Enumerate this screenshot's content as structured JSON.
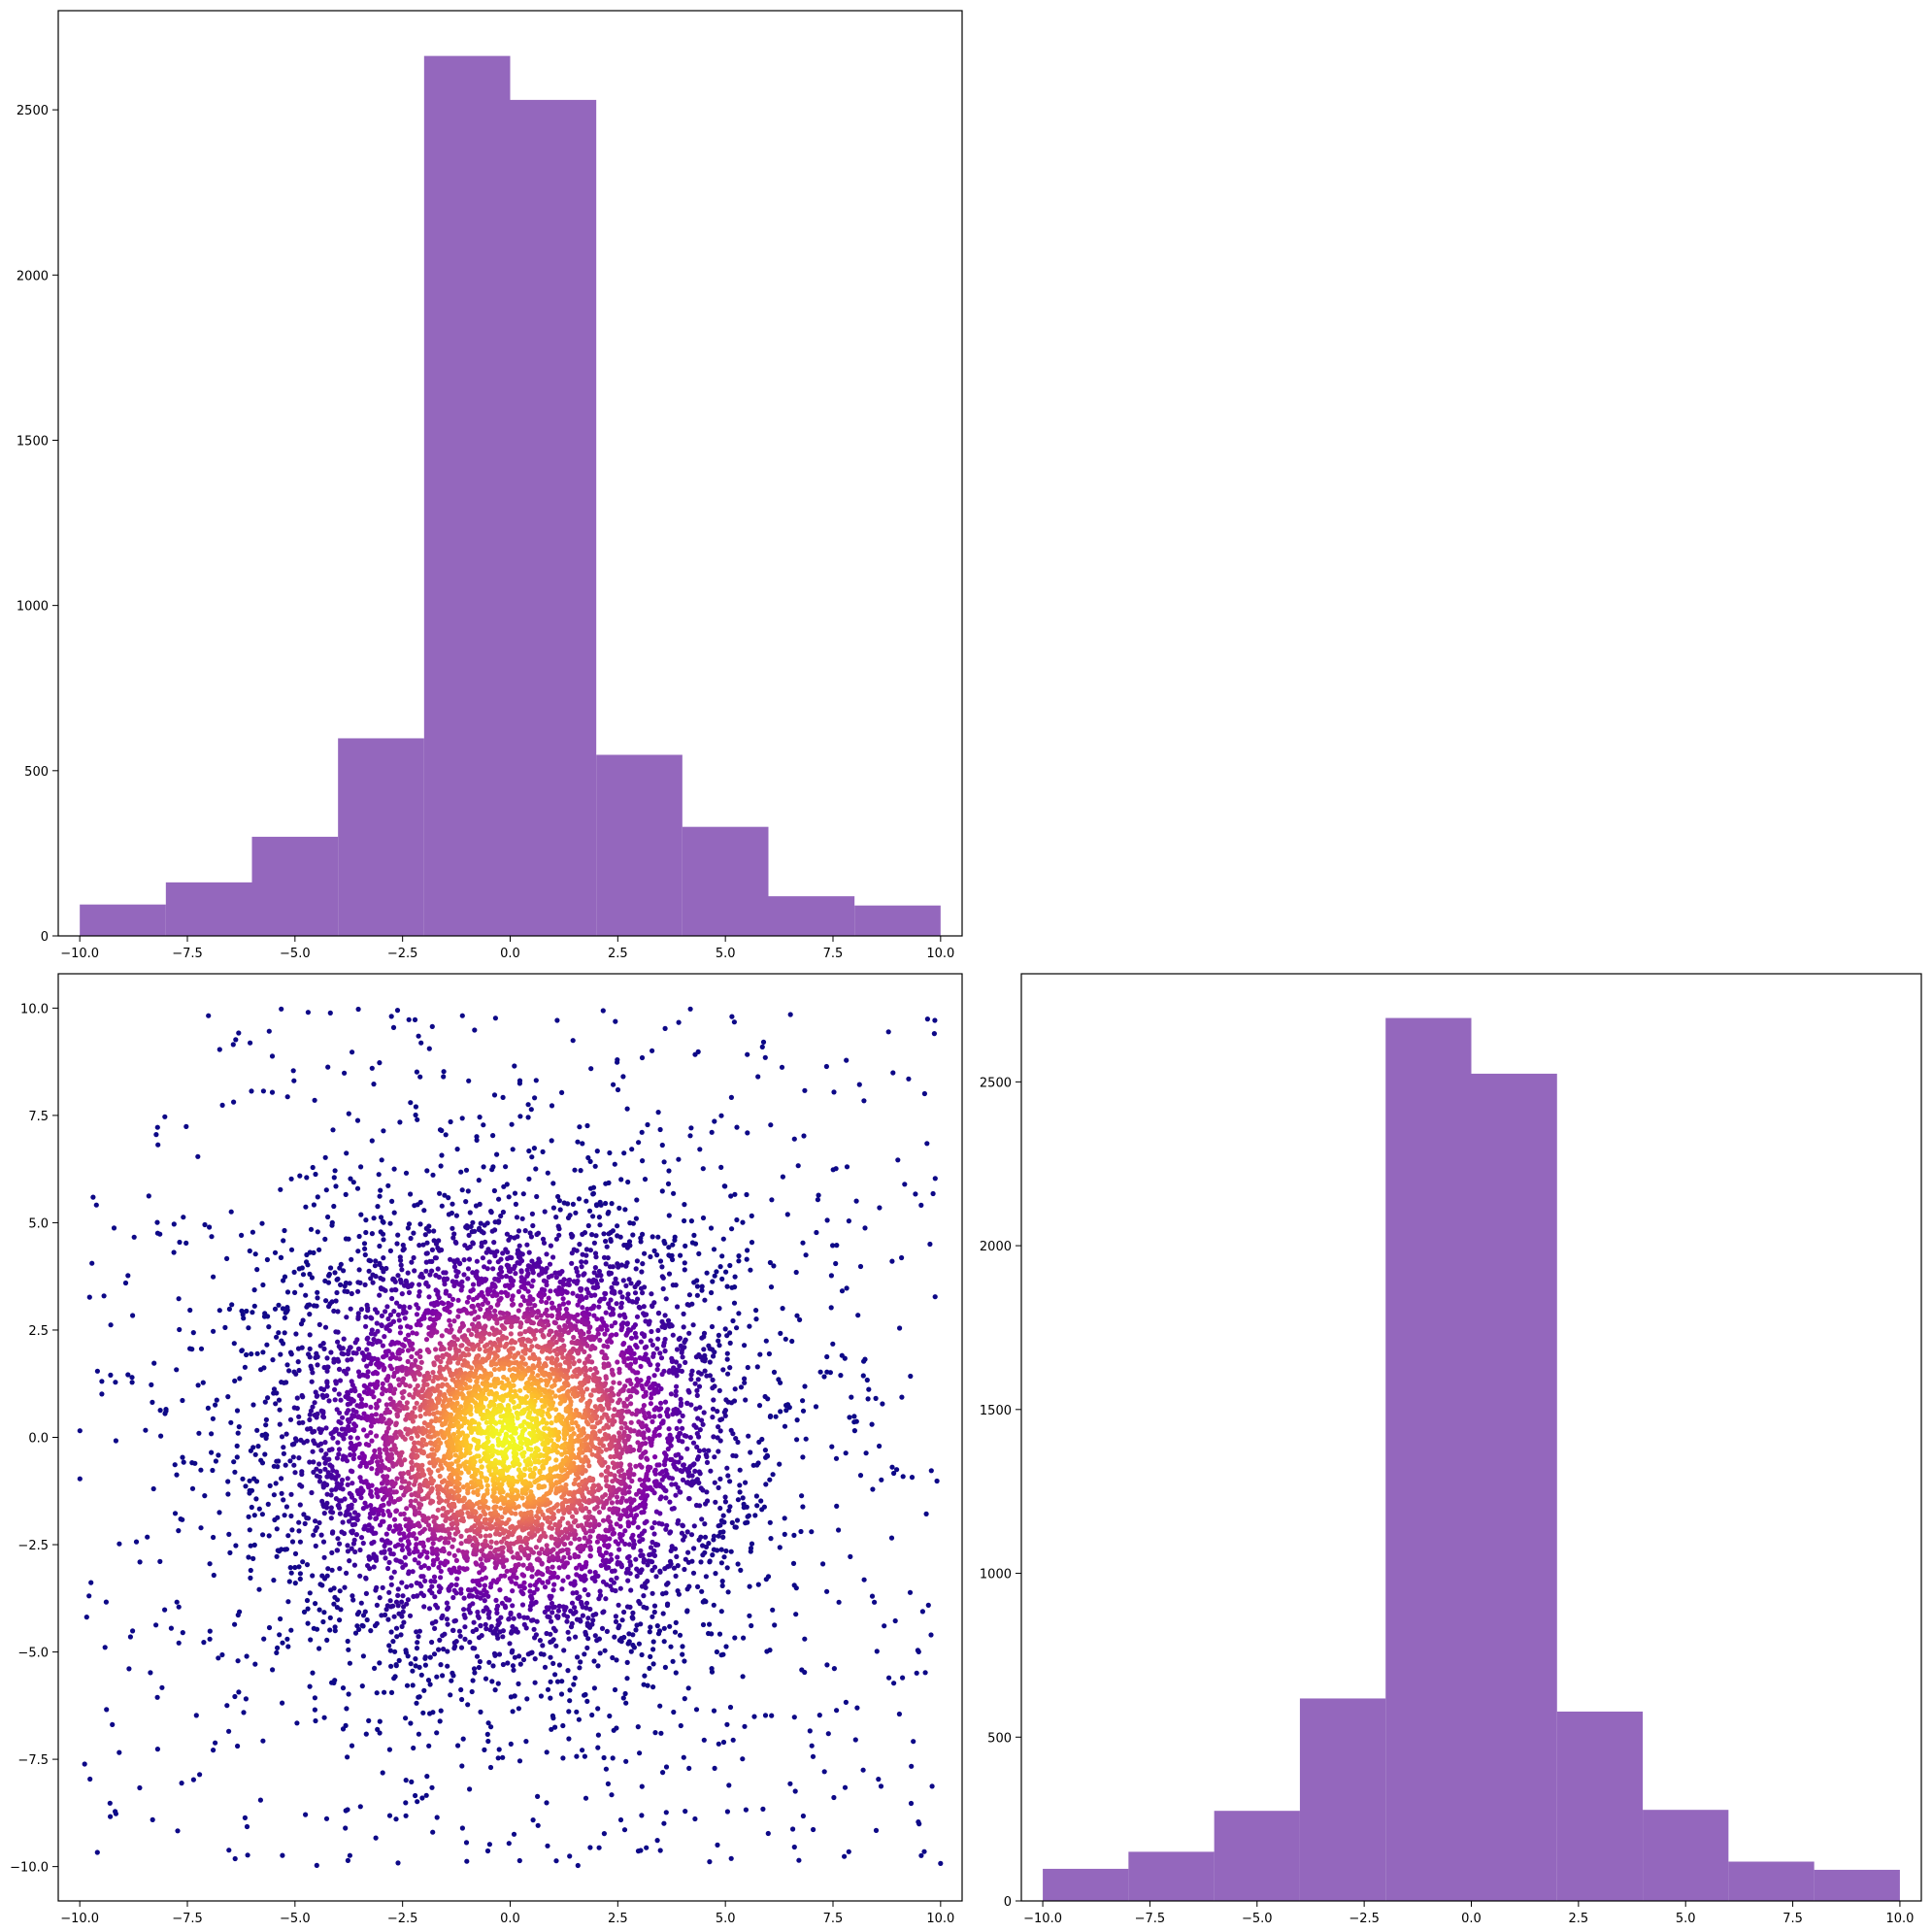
{
  "chart_data": [
    {
      "panel": "top-left",
      "type": "histogram",
      "color": "#9467bd",
      "bin_edges": [
        -10,
        -8,
        -6,
        -4,
        -2,
        0,
        2,
        4,
        6,
        8,
        10
      ],
      "counts": [
        95,
        162,
        300,
        598,
        2663,
        2530,
        548,
        330,
        120,
        92
      ],
      "xlim": [
        -10.5,
        10.5
      ],
      "ylim": [
        0,
        2800
      ],
      "xticks": [
        -10.0,
        -7.5,
        -5.0,
        -2.5,
        0.0,
        2.5,
        5.0,
        7.5,
        10.0
      ],
      "xtick_labels": [
        "−10.0",
        "−7.5",
        "−5.0",
        "−2.5",
        "0.0",
        "2.5",
        "5.0",
        "7.5",
        "10.0"
      ],
      "yticks": [
        0,
        500,
        1000,
        1500,
        2000,
        2500
      ],
      "ytick_labels": [
        "0",
        "500",
        "1000",
        "1500",
        "2000",
        "2500"
      ],
      "grid": false
    },
    {
      "panel": "bottom-left",
      "type": "scatter",
      "colormap": "plasma",
      "color_encodes": "point density",
      "n_points_approx": 7500,
      "distribution": "dense core near (0, 0) over a thin uniform background across [-10, 10] × [-10, 10]",
      "xlim": [
        -10.5,
        10.5
      ],
      "ylim": [
        -10.8,
        10.8
      ],
      "xticks": [
        -10.0,
        -7.5,
        -5.0,
        -2.5,
        0.0,
        2.5,
        5.0,
        7.5,
        10.0
      ],
      "xtick_labels": [
        "−10.0",
        "−7.5",
        "−5.0",
        "−2.5",
        "0.0",
        "2.5",
        "5.0",
        "7.5",
        "10.0"
      ],
      "yticks": [
        -10.0,
        -7.5,
        -5.0,
        -2.5,
        0.0,
        2.5,
        5.0,
        7.5,
        10.0
      ],
      "ytick_labels": [
        "−10.0",
        "−7.5",
        "−5.0",
        "−2.5",
        "0.0",
        "2.5",
        "5.0",
        "7.5",
        "10.0"
      ],
      "grid": false
    },
    {
      "panel": "bottom-right",
      "type": "histogram",
      "color": "#9467bd",
      "bin_edges": [
        -10,
        -8,
        -6,
        -4,
        -2,
        0,
        2,
        4,
        6,
        8,
        10
      ],
      "counts": [
        98,
        150,
        275,
        618,
        2695,
        2525,
        578,
        278,
        120,
        95
      ],
      "xlim": [
        -10.5,
        10.5
      ],
      "ylim": [
        0,
        2830
      ],
      "xticks": [
        -10.0,
        -7.5,
        -5.0,
        -2.5,
        0.0,
        2.5,
        5.0,
        7.5,
        10.0
      ],
      "xtick_labels": [
        "−10.0",
        "−7.5",
        "−5.0",
        "−2.5",
        "0.0",
        "2.5",
        "5.0",
        "7.5",
        "10.0"
      ],
      "yticks": [
        0,
        500,
        1000,
        1500,
        2000,
        2500
      ],
      "ytick_labels": [
        "0",
        "500",
        "1000",
        "1500",
        "2000",
        "2500"
      ],
      "grid": false
    }
  ]
}
